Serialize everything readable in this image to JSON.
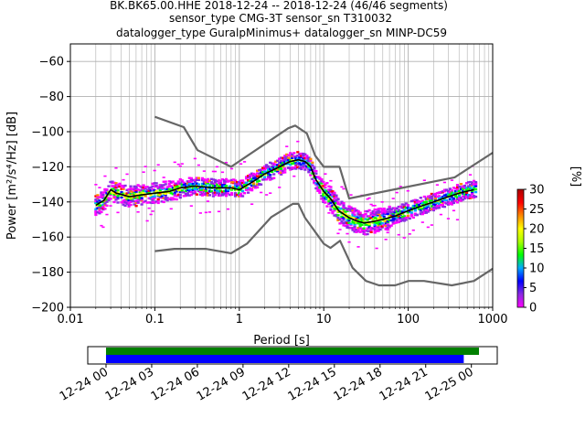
{
  "chart_data": [
    {
      "type": "line",
      "title_lines": [
        "BK.BK65.00.HHE   2018-12-24 -- 2018-12-24  (46/46 segments)",
        "sensor_type CMG-3T sensor_sn T310032",
        "datalogger_type GuralpMinimus+ datalogger_sn MINP-DC59"
      ],
      "xlabel": "Period [s]",
      "ylabel": "Power [m²/s⁴/Hz] [dB]",
      "x_scale": "log",
      "xlim": [
        0.01,
        1000
      ],
      "ylim": [
        -200,
        -50
      ],
      "x_ticks": [
        {
          "value": 0.01,
          "label": "0.01"
        },
        {
          "value": 0.1,
          "label": "0.1"
        },
        {
          "value": 1,
          "label": "1"
        },
        {
          "value": 10,
          "label": "10"
        },
        {
          "value": 100,
          "label": "100"
        },
        {
          "value": 1000,
          "label": "1000"
        }
      ],
      "y_ticks": [
        {
          "value": -60,
          "label": "−60"
        },
        {
          "value": -80,
          "label": "−80"
        },
        {
          "value": -100,
          "label": "−100"
        },
        {
          "value": -120,
          "label": "−120"
        },
        {
          "value": -140,
          "label": "−140"
        },
        {
          "value": -160,
          "label": "−160"
        },
        {
          "value": -180,
          "label": "−180"
        },
        {
          "value": -200,
          "label": "−200"
        }
      ],
      "grid": true,
      "series": [
        {
          "role": "high-noise-model",
          "color": "#666666",
          "x": [
            0.1,
            0.22,
            0.32,
            0.8,
            3.8,
            4.6,
            6.3,
            7.9,
            10,
            15.4,
            20,
            354.8,
            1000
          ],
          "y": [
            -91.5,
            -97.4,
            -110.5,
            -120,
            -98,
            -96.5,
            -101,
            -113.5,
            -120,
            -120,
            -138,
            -126,
            -112
          ]
        },
        {
          "role": "low-noise-model",
          "color": "#666666",
          "x": [
            0.1,
            0.17,
            0.4,
            0.8,
            1.24,
            2.4,
            4.3,
            5,
            6,
            10,
            12,
            15.6,
            21.9,
            31.6,
            45,
            70,
            101,
            154,
            328,
            600,
            1000
          ],
          "y": [
            -168,
            -166.7,
            -166.7,
            -169.2,
            -163.7,
            -148.6,
            -141.1,
            -141.1,
            -149,
            -163.8,
            -166.2,
            -162.1,
            -177.5,
            -185,
            -187.5,
            -187.5,
            -185,
            -185,
            -187.5,
            -185,
            -178
          ]
        },
        {
          "role": "mode",
          "color": "#000000",
          "x": [
            0.02,
            0.025,
            0.03,
            0.035,
            0.05,
            0.07,
            0.1,
            0.15,
            0.2,
            0.3,
            0.5,
            0.8,
            1,
            1.5,
            2,
            3,
            4,
            5,
            6,
            7,
            8,
            10,
            12,
            15,
            20,
            25,
            30,
            40,
            50,
            70,
            100,
            150,
            200,
            300,
            400,
            600
          ],
          "y": [
            -142,
            -139,
            -133,
            -135,
            -137,
            -136,
            -135,
            -134,
            -132,
            -131,
            -132,
            -132,
            -133,
            -128,
            -124,
            -120,
            -117,
            -116,
            -117,
            -120,
            -127,
            -134,
            -138,
            -145,
            -149,
            -151,
            -152,
            -151,
            -150,
            -148,
            -145,
            -142,
            -140,
            -137,
            -135,
            -133
          ]
        }
      ],
      "density_scale": {
        "label": "[%]",
        "range": [
          0,
          30
        ],
        "ticks": [
          {
            "value": 0,
            "label": "0"
          },
          {
            "value": 5,
            "label": "5"
          },
          {
            "value": 10,
            "label": "10"
          },
          {
            "value": 15,
            "label": "15"
          },
          {
            "value": 20,
            "label": "20"
          },
          {
            "value": 25,
            "label": "25"
          },
          {
            "value": 30,
            "label": "30"
          }
        ],
        "colors": [
          "#ffffff",
          "#ff00ff",
          "#8a2be2",
          "#0000ff",
          "#00aaff",
          "#00ff00",
          "#aaff00",
          "#ffff00",
          "#ff8800",
          "#ff0000",
          "#aa0000"
        ]
      }
    },
    {
      "type": "timeline",
      "time_range": [
        "2018-12-24 00:00",
        "2018-12-25 00:00"
      ],
      "x_ticks": [
        {
          "hours": 0,
          "label": "12-24 00"
        },
        {
          "hours": 3,
          "label": "12-24 03"
        },
        {
          "hours": 6,
          "label": "12-24 06"
        },
        {
          "hours": 9,
          "label": "12-24 09"
        },
        {
          "hours": 12,
          "label": "12-24 12"
        },
        {
          "hours": 15,
          "label": "12-24 15"
        },
        {
          "hours": 18,
          "label": "12-24 18"
        },
        {
          "hours": 21,
          "label": "12-24 21"
        },
        {
          "hours": 24,
          "label": "12-25 00"
        }
      ],
      "bars": [
        {
          "color": "#008000",
          "start_hours": 0,
          "end_hours": 24.5
        },
        {
          "color": "#0000ff",
          "start_hours": 0,
          "end_hours": 23.5
        }
      ],
      "view_range_hours": [
        -1.2,
        25.7
      ]
    }
  ]
}
